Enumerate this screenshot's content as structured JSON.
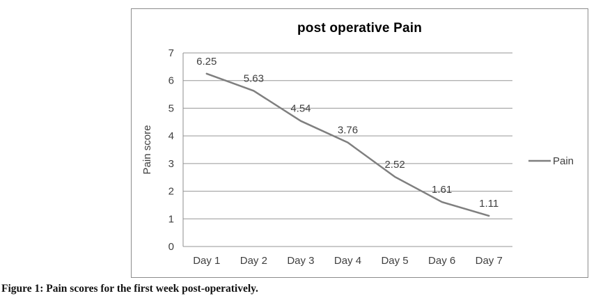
{
  "chart_data": {
    "type": "line",
    "title": "post operative Pain",
    "categories": [
      "Day 1",
      "Day 2",
      "Day 3",
      "Day 4",
      "Day 5",
      "Day 6",
      "Day 7"
    ],
    "series": [
      {
        "name": "Pain",
        "values": [
          6.25,
          5.63,
          4.54,
          3.76,
          2.52,
          1.61,
          1.11
        ],
        "color": "#7F7F7F"
      }
    ],
    "data_labels": [
      "6.25",
      "5.63",
      "4.54",
      "3.76",
      "2.52",
      "1.61",
      "1.11"
    ],
    "xlabel": "",
    "ylabel": "Pain score",
    "ylim": [
      0,
      7
    ],
    "ytick_interval": 1,
    "grid": true,
    "legend_position": "right",
    "legend_label": "Pain"
  },
  "caption": "Figure 1: Pain scores for the first week post-operatively.",
  "colors": {
    "series_line": "#7F7F7F",
    "gridline": "#969696",
    "axis": "#8C8C8C",
    "chart_border": "#8C8C8C",
    "tick_text": "#3F3F3F",
    "label_text": "#3F3F3F",
    "title_text": "#000000"
  }
}
